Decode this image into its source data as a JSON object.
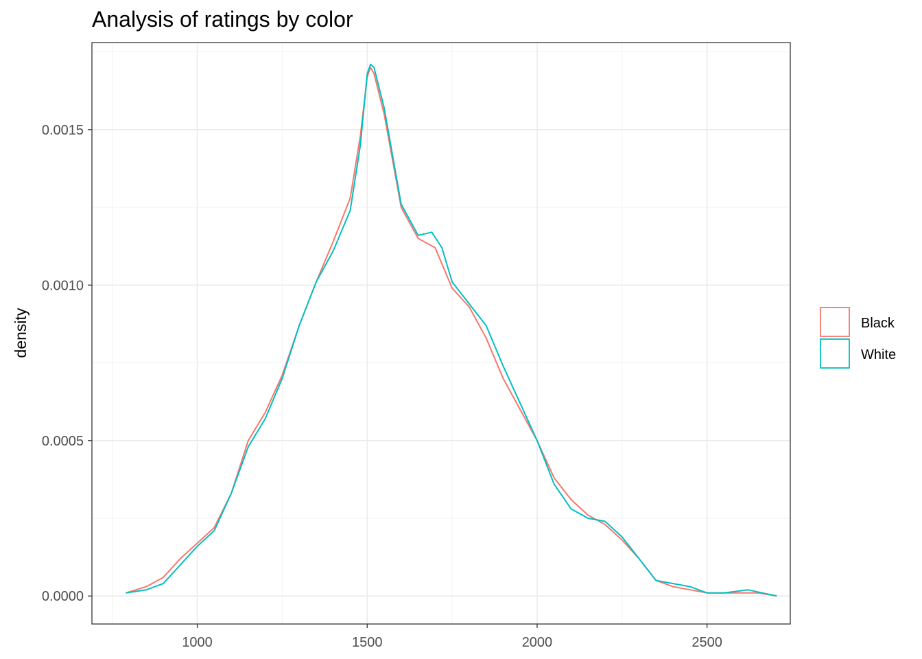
{
  "chart_data": {
    "type": "line",
    "title": "Analysis of ratings by color",
    "xlabel": "",
    "ylabel": "density",
    "xlim": [
      690,
      2745
    ],
    "ylim": [
      -9e-05,
      0.00178
    ],
    "xticks": [
      1000,
      1500,
      2000,
      2500
    ],
    "yticks": [
      0.0,
      0.0005,
      0.001,
      0.0015
    ],
    "ytick_labels": [
      "0.0000",
      "0.0005",
      "0.0010",
      "0.0015"
    ],
    "grid": true,
    "legend_position": "right",
    "series": [
      {
        "name": "Black",
        "color": "#F8766D",
        "x": [
          790,
          850,
          900,
          950,
          1000,
          1050,
          1100,
          1150,
          1200,
          1250,
          1300,
          1350,
          1400,
          1450,
          1480,
          1500,
          1510,
          1520,
          1550,
          1600,
          1650,
          1700,
          1750,
          1800,
          1850,
          1900,
          1950,
          2000,
          2050,
          2100,
          2150,
          2200,
          2250,
          2300,
          2350,
          2400,
          2450,
          2500,
          2550,
          2600,
          2650,
          2705
        ],
        "values": [
          1e-05,
          3e-05,
          6e-05,
          0.00012,
          0.00017,
          0.00022,
          0.00033,
          0.0005,
          0.00059,
          0.00071,
          0.00087,
          0.00101,
          0.00114,
          0.00128,
          0.00148,
          0.00167,
          0.0017,
          0.00168,
          0.00155,
          0.00125,
          0.00115,
          0.00112,
          0.00099,
          0.00093,
          0.00083,
          0.0007,
          0.0006,
          0.0005,
          0.00038,
          0.00031,
          0.00026,
          0.00023,
          0.00018,
          0.00012,
          5e-05,
          3e-05,
          2e-05,
          1e-05,
          1e-05,
          1e-05,
          1e-05,
          0.0
        ]
      },
      {
        "name": "White",
        "color": "#00BFC4",
        "x": [
          790,
          850,
          900,
          950,
          1000,
          1050,
          1100,
          1150,
          1200,
          1250,
          1300,
          1350,
          1400,
          1450,
          1480,
          1500,
          1510,
          1520,
          1550,
          1600,
          1650,
          1690,
          1720,
          1750,
          1800,
          1850,
          1900,
          1950,
          2000,
          2050,
          2100,
          2150,
          2200,
          2250,
          2300,
          2350,
          2400,
          2450,
          2500,
          2550,
          2620,
          2705
        ],
        "values": [
          1e-05,
          2e-05,
          4e-05,
          0.0001,
          0.00016,
          0.00021,
          0.00033,
          0.00048,
          0.00057,
          0.0007,
          0.00087,
          0.00101,
          0.00111,
          0.00124,
          0.00145,
          0.00168,
          0.00171,
          0.0017,
          0.00157,
          0.00126,
          0.00116,
          0.00117,
          0.00112,
          0.00101,
          0.00094,
          0.00087,
          0.00074,
          0.00062,
          0.0005,
          0.00036,
          0.00028,
          0.00025,
          0.00024,
          0.00019,
          0.00012,
          5e-05,
          4e-05,
          3e-05,
          1e-05,
          1e-05,
          2e-05,
          0.0
        ]
      }
    ]
  }
}
